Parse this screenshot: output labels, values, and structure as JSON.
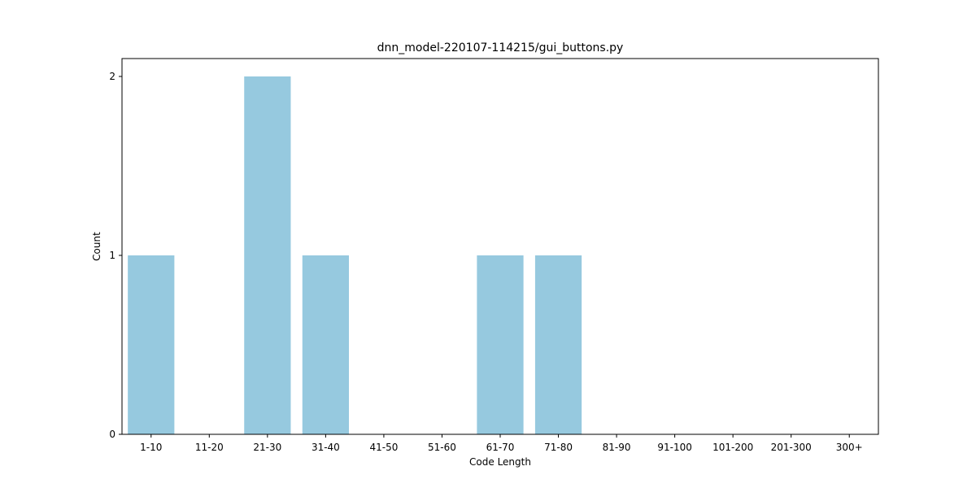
{
  "chart_data": {
    "type": "bar",
    "title": "dnn_model-220107-114215/gui_buttons.py",
    "xlabel": "Code Length",
    "ylabel": "Count",
    "categories": [
      "1-10",
      "11-20",
      "21-30",
      "31-40",
      "41-50",
      "51-60",
      "61-70",
      "71-80",
      "81-90",
      "91-100",
      "101-200",
      "201-300",
      "300+"
    ],
    "values": [
      1,
      0,
      2,
      1,
      0,
      0,
      1,
      1,
      0,
      0,
      0,
      0,
      0
    ],
    "ylim": [
      0,
      2.1
    ],
    "yticks": [
      0,
      1,
      2
    ],
    "grid": false,
    "bar_color": "#96c9df"
  }
}
